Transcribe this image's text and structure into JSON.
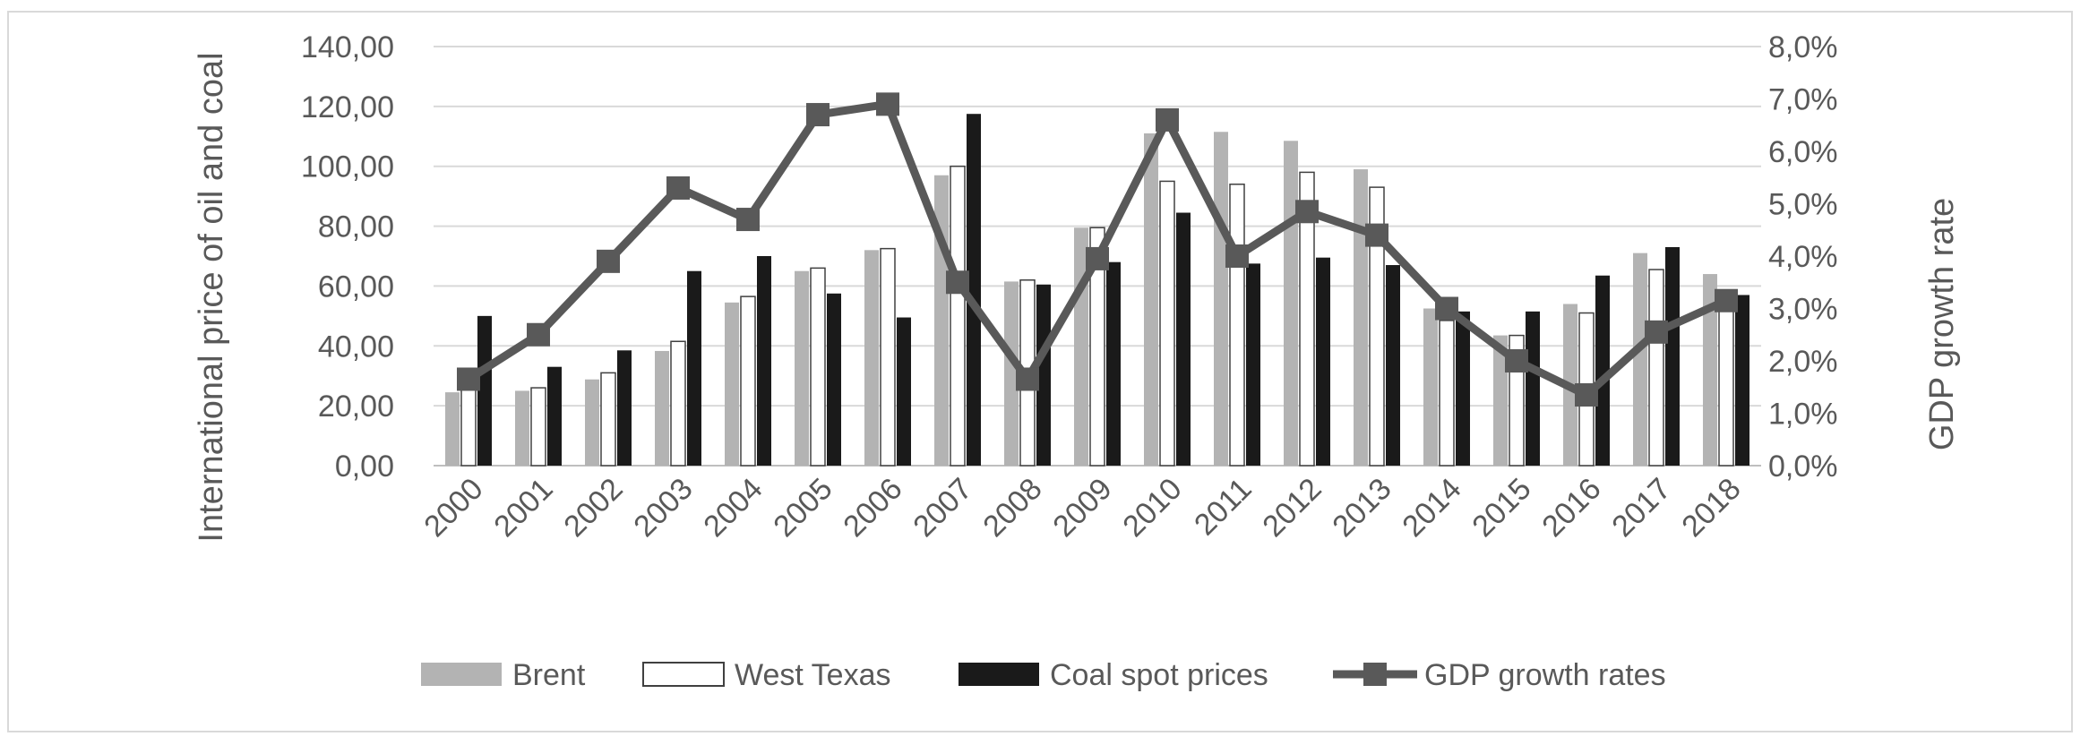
{
  "chart_data": {
    "type": "bar",
    "categories": [
      "2000",
      "2001",
      "2002",
      "2003",
      "2004",
      "2005",
      "2006",
      "2007",
      "2008",
      "2009",
      "2010",
      "2011",
      "2012",
      "2013",
      "2014",
      "2015",
      "2016",
      "2017",
      "2018"
    ],
    "series": [
      {
        "name": "Brent",
        "kind": "bar",
        "axis": "left",
        "color": "#b3b3b3",
        "values": [
          24.5,
          25.0,
          28.8,
          38.3,
          54.5,
          65.0,
          72.0,
          97.0,
          61.5,
          79.5,
          111.0,
          111.5,
          108.5,
          99.0,
          52.5,
          43.5,
          54.0,
          71.0,
          64.0
        ]
      },
      {
        "name": "West Texas",
        "kind": "bar",
        "axis": "left",
        "color": "#ffffff",
        "stroke": "#404040",
        "values": [
          26.0,
          26.0,
          31.0,
          41.5,
          56.5,
          66.0,
          72.5,
          100.0,
          62.0,
          79.5,
          95.0,
          94.0,
          98.0,
          93.0,
          48.5,
          43.5,
          51.0,
          65.5,
          57.0
        ]
      },
      {
        "name": "Coal spot prices",
        "kind": "bar",
        "axis": "left",
        "color": "#1a1a1a",
        "values": [
          50.0,
          33.0,
          38.5,
          65.0,
          70.0,
          57.5,
          49.5,
          117.5,
          60.5,
          68.0,
          84.5,
          67.5,
          69.5,
          67.0,
          51.5,
          51.5,
          63.5,
          73.0,
          57.0
        ]
      },
      {
        "name": "GDP growth rates",
        "kind": "line",
        "axis": "right",
        "color": "#595959",
        "values": [
          1.65,
          2.5,
          3.9,
          5.3,
          4.7,
          6.7,
          6.9,
          3.5,
          1.65,
          3.95,
          6.6,
          4.0,
          4.85,
          4.4,
          3.0,
          2.0,
          1.35,
          2.55,
          3.15
        ]
      }
    ],
    "title": "",
    "xlabel": "",
    "ylabel": "International price of oil and coal",
    "y2label": "GDP growth rate",
    "ylim": [
      0,
      140
    ],
    "y2lim": [
      0,
      8
    ],
    "yticks": [
      "0,00",
      "20,00",
      "40,00",
      "60,00",
      "80,00",
      "100,00",
      "120,00",
      "140,00"
    ],
    "y2ticks": [
      "0,0%",
      "1,0%",
      "2,0%",
      "3,0%",
      "4,0%",
      "5,0%",
      "6,0%",
      "7,0%",
      "8,0%"
    ],
    "grid": true,
    "legend_position": "bottom"
  }
}
